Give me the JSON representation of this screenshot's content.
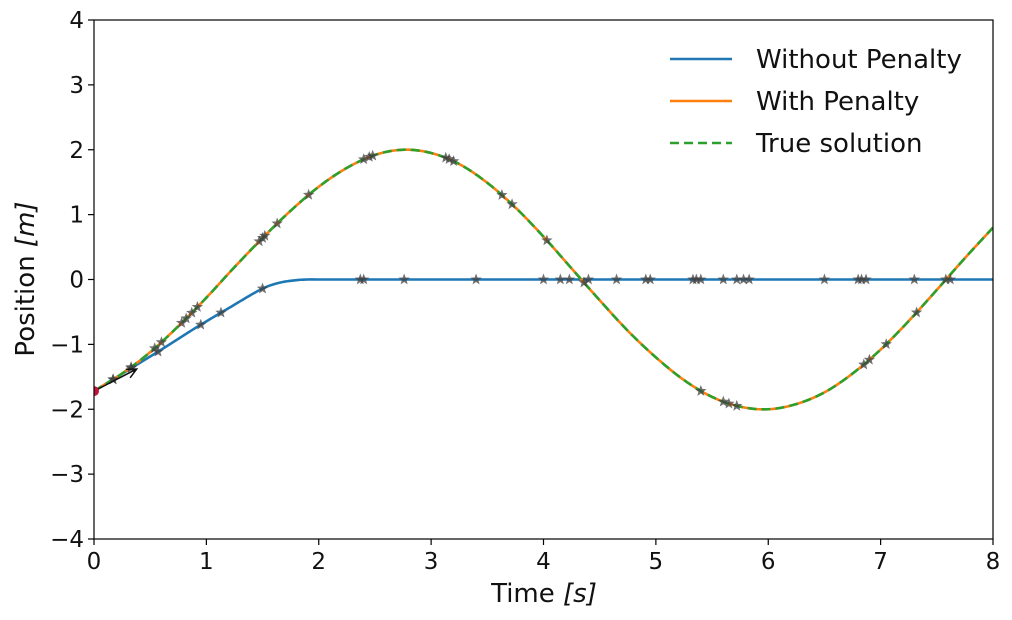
{
  "chart_data": {
    "type": "line",
    "title": "",
    "xlabel_main": "Time ",
    "xlabel_unit": "[s]",
    "ylabel_main": "Position ",
    "ylabel_unit": "[m]",
    "xlim": [
      0,
      8
    ],
    "ylim": [
      -4,
      4
    ],
    "xticks": [
      0,
      1,
      2,
      3,
      4,
      5,
      6,
      7,
      8
    ],
    "yticks": [
      -4,
      -3,
      -2,
      -1,
      0,
      1,
      2,
      3,
      4
    ],
    "xtick_labels": [
      "0",
      "1",
      "2",
      "3",
      "4",
      "5",
      "6",
      "7",
      "8"
    ],
    "ytick_labels": [
      "−4",
      "−3",
      "−2",
      "−1",
      "0",
      "1",
      "2",
      "3",
      "4"
    ],
    "grid": false,
    "legend_position": "top-right",
    "colors": {
      "without_penalty": "#1f77b4",
      "with_penalty": "#ff7f0e",
      "true_solution": "#2ca02c",
      "markers": "#404040",
      "initial_point": "#c0143c"
    },
    "series": [
      {
        "name": "Without Penalty",
        "style": "solid",
        "x": [
          0,
          0.3,
          0.6,
          0.9,
          1.2,
          1.5,
          1.65,
          1.8,
          1.9,
          2.0,
          2.5,
          3,
          4,
          5,
          6,
          7,
          8
        ],
        "y": [
          -1.72,
          -1.4,
          -1.08,
          -0.75,
          -0.44,
          -0.14,
          -0.05,
          -0.01,
          0.0,
          0.0,
          0.0,
          0.0,
          0.0,
          0.0,
          0.0,
          0.0,
          0.0
        ]
      },
      {
        "name": "With Penalty",
        "style": "solid",
        "x": [
          0,
          0.25,
          0.5,
          0.75,
          1.0,
          1.25,
          1.5,
          1.75,
          2.0,
          2.25,
          2.5,
          2.75,
          3.0,
          3.25,
          3.5,
          3.75,
          4.0,
          4.25,
          4.5,
          4.75,
          5.0,
          5.25,
          5.5,
          5.75,
          6.0,
          6.25,
          6.5,
          6.75,
          7.0,
          7.25,
          7.5,
          7.75,
          8.0
        ],
        "y": [
          -1.72,
          -1.45,
          -1.12,
          -0.72,
          -0.28,
          0.19,
          0.64,
          1.06,
          1.43,
          1.72,
          1.92,
          2.0,
          1.95,
          1.78,
          1.49,
          1.11,
          0.66,
          0.17,
          -0.32,
          -0.79,
          -1.2,
          -1.55,
          -1.81,
          -1.96,
          -2.0,
          -1.92,
          -1.74,
          -1.45,
          -1.08,
          -0.64,
          -0.16,
          0.33,
          0.8
        ]
      },
      {
        "name": "True solution",
        "style": "dashed",
        "x": [
          0,
          0.25,
          0.5,
          0.75,
          1.0,
          1.25,
          1.5,
          1.75,
          2.0,
          2.25,
          2.5,
          2.75,
          3.0,
          3.25,
          3.5,
          3.75,
          4.0,
          4.25,
          4.5,
          4.75,
          5.0,
          5.25,
          5.5,
          5.75,
          6.0,
          6.25,
          6.5,
          6.75,
          7.0,
          7.25,
          7.5,
          7.75,
          8.0
        ],
        "y": [
          -1.72,
          -1.45,
          -1.12,
          -0.72,
          -0.28,
          0.19,
          0.64,
          1.06,
          1.43,
          1.72,
          1.92,
          2.0,
          1.95,
          1.78,
          1.49,
          1.11,
          0.66,
          0.17,
          -0.32,
          -0.79,
          -1.2,
          -1.55,
          -1.81,
          -1.96,
          -2.0,
          -1.92,
          -1.74,
          -1.45,
          -1.08,
          -0.64,
          -0.16,
          0.33,
          0.8
        ]
      }
    ],
    "markers_on_flat": [
      0.17,
      0.33,
      0.57,
      0.95,
      1.13,
      1.5,
      2.37,
      2.4,
      2.76,
      3.4,
      4.0,
      4.15,
      4.23,
      4.4,
      4.65,
      4.91,
      4.95,
      5.33,
      5.36,
      5.4,
      5.6,
      5.72,
      5.78,
      5.83,
      6.5,
      6.8,
      6.83,
      6.87,
      7.3,
      7.58,
      7.62
    ],
    "markers_on_wave": [
      0.17,
      0.33,
      0.54,
      0.6,
      0.78,
      0.82,
      0.87,
      0.92,
      1.47,
      1.5,
      1.52,
      1.63,
      1.91,
      2.4,
      2.45,
      2.48,
      3.13,
      3.16,
      3.2,
      3.63,
      3.72,
      4.03,
      4.36,
      5.4,
      5.6,
      5.65,
      5.72,
      6.85,
      6.9,
      7.05,
      7.32
    ],
    "initial_point": {
      "x": 0,
      "y": -1.72
    },
    "initial_arrow": {
      "x": 0.38,
      "y": -1.38
    }
  }
}
